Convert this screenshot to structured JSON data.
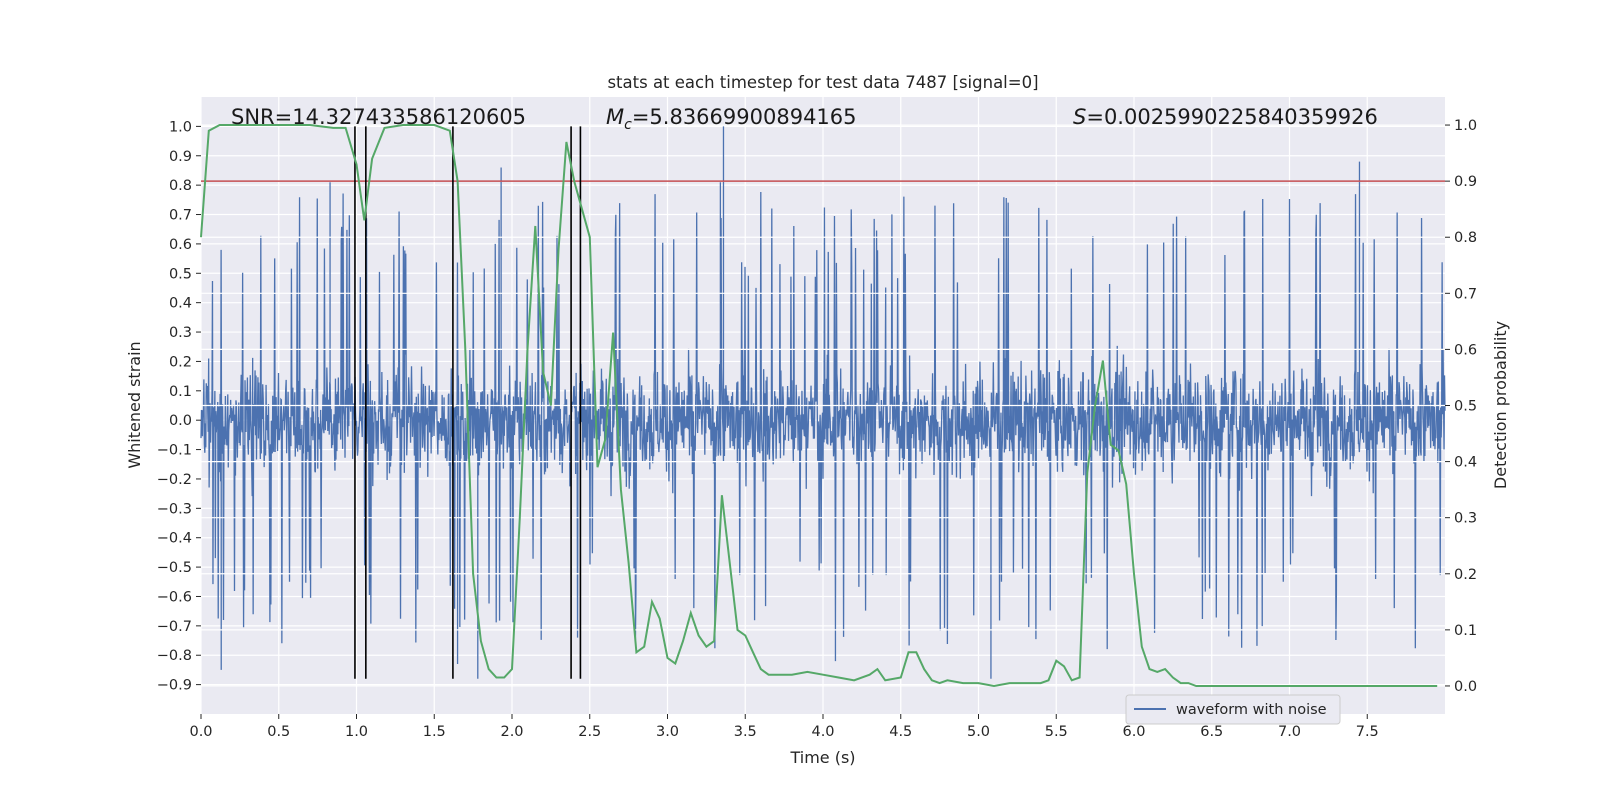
{
  "chart_data": {
    "type": "line",
    "title": "stats at each timestep for test data 7487 [signal=0]",
    "xlabel": "Time (s)",
    "ylabel_left": "Whitened strain",
    "ylabel_right": "Detection probability",
    "xlim": [
      0.0,
      8.0
    ],
    "ylim_left": [
      -1.0,
      1.1
    ],
    "ylim_right": [
      -0.05,
      1.05
    ],
    "x_ticks": [
      "0.0",
      "0.5",
      "1.0",
      "1.5",
      "2.0",
      "2.5",
      "3.0",
      "3.5",
      "4.0",
      "4.5",
      "5.0",
      "5.5",
      "6.0",
      "6.5",
      "7.0",
      "7.5"
    ],
    "x_tick_values": [
      0.0,
      0.5,
      1.0,
      1.5,
      2.0,
      2.5,
      3.0,
      3.5,
      4.0,
      4.5,
      5.0,
      5.5,
      6.0,
      6.5,
      7.0,
      7.5
    ],
    "y_left_ticks": [
      "1.0",
      "0.9",
      "0.8",
      "0.7",
      "0.6",
      "0.5",
      "0.4",
      "0.3",
      "0.2",
      "0.1",
      "0.0",
      "−0.1",
      "−0.2",
      "−0.3",
      "−0.4",
      "−0.5",
      "−0.6",
      "−0.7",
      "−0.8",
      "−0.9"
    ],
    "y_left_tick_values": [
      1.0,
      0.9,
      0.8,
      0.7,
      0.6,
      0.5,
      0.4,
      0.3,
      0.2,
      0.1,
      0.0,
      -0.1,
      -0.2,
      -0.3,
      -0.4,
      -0.5,
      -0.6,
      -0.7,
      -0.8,
      -0.9
    ],
    "y_right_ticks": [
      "1.0",
      "0.9",
      "0.8",
      "0.7",
      "0.6",
      "0.5",
      "0.4",
      "0.3",
      "0.2",
      "0.1",
      "0.0"
    ],
    "y_right_tick_values": [
      1.0,
      0.9,
      0.8,
      0.7,
      0.6,
      0.5,
      0.4,
      0.3,
      0.2,
      0.1,
      0.0
    ],
    "annotations": {
      "snr": "SNR=14.327433586120605",
      "mc_symbol": "M",
      "mc_sub": "c",
      "mc_value": "=5.83669900894165",
      "s_symbol": "S",
      "s_value": "=0.0025990225840359926"
    },
    "threshold": {
      "value": 0.9,
      "axis": "right",
      "color": "#c44e52"
    },
    "vertical_lines": {
      "x": [
        0.99,
        1.06,
        1.62,
        2.38,
        2.44
      ],
      "ymin": -0.88,
      "ymax": 1.0,
      "color": "#000000"
    },
    "waveform": {
      "name": "waveform with noise",
      "color": "#4c72b0",
      "duration": 8.0,
      "core_amplitude": 0.27,
      "peaks": [
        {
          "x": 3.36,
          "y": 1.0
        },
        {
          "x": 7.45,
          "y": 0.88
        },
        {
          "x": 1.93,
          "y": 0.86
        },
        {
          "x": 0.83,
          "y": 0.81
        },
        {
          "x": 3.34,
          "y": 0.81
        },
        {
          "x": 5.08,
          "y": -0.88
        },
        {
          "x": 1.78,
          "y": -0.88
        },
        {
          "x": 0.13,
          "y": -0.85
        },
        {
          "x": 1.65,
          "y": -0.83
        },
        {
          "x": 4.08,
          "y": -0.82
        }
      ]
    },
    "probability": {
      "name": "detection probability",
      "color": "#55a868",
      "x": [
        0.0,
        0.05,
        0.12,
        0.2,
        0.3,
        0.5,
        0.7,
        0.85,
        0.93,
        1.0,
        1.05,
        1.1,
        1.18,
        1.3,
        1.5,
        1.6,
        1.65,
        1.7,
        1.75,
        1.8,
        1.85,
        1.9,
        1.95,
        2.0,
        2.05,
        2.1,
        2.15,
        2.2,
        2.25,
        2.3,
        2.35,
        2.4,
        2.45,
        2.5,
        2.55,
        2.6,
        2.65,
        2.7,
        2.75,
        2.8,
        2.85,
        2.9,
        2.95,
        3.0,
        3.05,
        3.1,
        3.15,
        3.2,
        3.25,
        3.3,
        3.35,
        3.4,
        3.45,
        3.5,
        3.55,
        3.6,
        3.65,
        3.7,
        3.75,
        3.8,
        3.9,
        4.0,
        4.1,
        4.2,
        4.3,
        4.35,
        4.4,
        4.5,
        4.55,
        4.6,
        4.65,
        4.7,
        4.75,
        4.8,
        4.9,
        5.0,
        5.1,
        5.2,
        5.3,
        5.4,
        5.45,
        5.5,
        5.55,
        5.6,
        5.65,
        5.7,
        5.75,
        5.8,
        5.85,
        5.9,
        5.95,
        6.0,
        6.05,
        6.1,
        6.15,
        6.2,
        6.25,
        6.3,
        6.35,
        6.4,
        6.45,
        6.5,
        6.6,
        6.7,
        6.8,
        7.0,
        7.2,
        7.4,
        7.6,
        7.8,
        7.95
      ],
      "y": [
        0.8,
        0.99,
        1.0,
        1.0,
        1.0,
        1.0,
        1.0,
        0.995,
        0.995,
        0.93,
        0.83,
        0.94,
        0.995,
        1.0,
        1.0,
        0.99,
        0.9,
        0.6,
        0.2,
        0.08,
        0.03,
        0.015,
        0.015,
        0.03,
        0.3,
        0.6,
        0.82,
        0.56,
        0.5,
        0.78,
        0.97,
        0.9,
        0.85,
        0.8,
        0.39,
        0.44,
        0.63,
        0.35,
        0.22,
        0.06,
        0.07,
        0.15,
        0.12,
        0.05,
        0.04,
        0.08,
        0.13,
        0.09,
        0.07,
        0.08,
        0.34,
        0.22,
        0.1,
        0.09,
        0.06,
        0.03,
        0.02,
        0.02,
        0.02,
        0.02,
        0.025,
        0.02,
        0.015,
        0.01,
        0.02,
        0.03,
        0.01,
        0.015,
        0.06,
        0.06,
        0.03,
        0.01,
        0.005,
        0.01,
        0.005,
        0.005,
        0.0,
        0.005,
        0.005,
        0.005,
        0.01,
        0.045,
        0.035,
        0.01,
        0.015,
        0.38,
        0.5,
        0.58,
        0.43,
        0.42,
        0.36,
        0.2,
        0.07,
        0.03,
        0.025,
        0.03,
        0.015,
        0.005,
        0.005,
        0.0,
        0.0,
        0.0,
        0.0,
        0.0,
        0.0,
        0.0,
        0.0,
        0.0,
        0.0,
        0.0,
        0.0
      ]
    },
    "legend": {
      "label": "waveform with noise",
      "location": "lower-right"
    }
  }
}
